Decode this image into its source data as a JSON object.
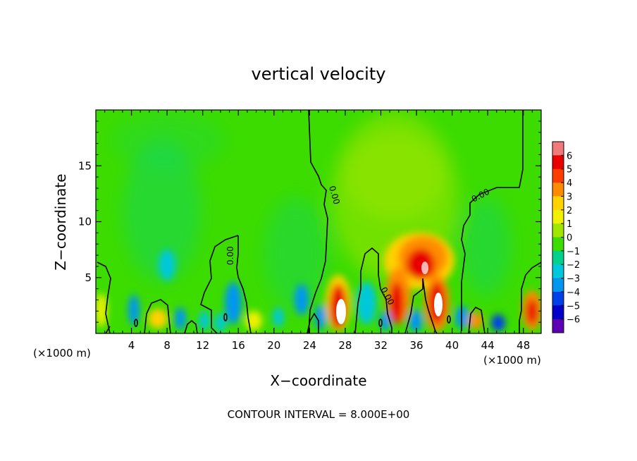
{
  "chart_data": {
    "type": "heatmap",
    "title": "vertical velocity",
    "xlabel": "X−coordinate",
    "ylabel": "Z−coordinate",
    "x_unit_label": "(×1000 m)",
    "x_unit_label_right": "(×1000 m)",
    "footer": "CONTOUR INTERVAL = 8.000E+00",
    "xlim": [
      0,
      50
    ],
    "ylim": [
      0,
      20
    ],
    "x_ticks": [
      4,
      8,
      12,
      16,
      20,
      24,
      28,
      32,
      36,
      40,
      44,
      48
    ],
    "y_ticks": [
      5,
      10,
      15
    ],
    "grid": false,
    "colorbar": {
      "range": [
        -6,
        6
      ],
      "tick_labels": [
        "6",
        "5",
        "4",
        "3",
        "2",
        "1",
        "0",
        "−1",
        "−2",
        "−3",
        "−4",
        "−5",
        "−6"
      ],
      "colors": [
        "#f07a7a",
        "#e80000",
        "#ff3c00",
        "#ff8c00",
        "#ffd200",
        "#f0f000",
        "#a0e600",
        "#3cdc00",
        "#00d28c",
        "#00c8dc",
        "#0096f0",
        "#0040e6",
        "#0000c8",
        "#6000b4"
      ]
    },
    "contour_labels": [
      "0.00",
      "0.00",
      "0.00",
      "0.00"
    ],
    "features": [
      {
        "x": 27.8,
        "z": 1.8,
        "value": 6
      },
      {
        "x": 38.4,
        "z": 2.4,
        "value": 6
      },
      {
        "x": 37.2,
        "z": 6.2,
        "value": 5
      },
      {
        "x": 33.8,
        "z": 2.2,
        "value": 4
      },
      {
        "x": 36.6,
        "z": 8.0,
        "value": 3
      },
      {
        "x": 49.2,
        "z": 2.0,
        "value": 4
      },
      {
        "x": 42.4,
        "z": 1.2,
        "value": 3
      },
      {
        "x": 45.5,
        "z": 0.9,
        "value": -4
      },
      {
        "x": 7.9,
        "z": 6.3,
        "value": -2
      },
      {
        "x": 16.0,
        "z": 2.0,
        "value": -3
      },
      {
        "x": 23.5,
        "z": 3.0,
        "value": -2
      },
      {
        "x": 25.6,
        "z": 2.1,
        "value": -2
      },
      {
        "x": 30.4,
        "z": 2.5,
        "value": -2
      },
      {
        "x": 4.4,
        "z": 2.0,
        "value": -3
      },
      {
        "x": 9.6,
        "z": 1.4,
        "value": -3
      },
      {
        "x": 14.5,
        "z": 1.2,
        "value": -3
      },
      {
        "x": 11.2,
        "z": 1.0,
        "value": -2
      }
    ]
  }
}
